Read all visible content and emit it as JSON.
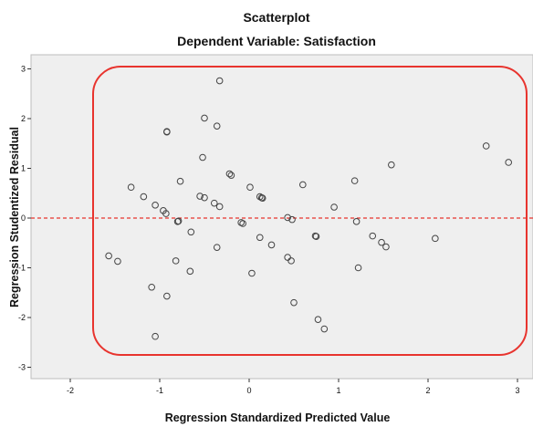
{
  "chart_data": {
    "type": "scatter",
    "title": "Scatterplot",
    "subtitle": "Dependent Variable: Satisfaction",
    "xlabel": "Regression Standardized Predicted Value",
    "ylabel": "Regression Studentized Residual",
    "xlim": [
      -2.5,
      3.05
    ],
    "ylim": [
      -3.25,
      3.3
    ],
    "xticks": [
      -2,
      -1,
      0,
      1,
      2,
      3
    ],
    "yticks": [
      -3,
      -2,
      -1,
      0,
      1,
      2,
      3
    ],
    "reference_line": {
      "y": 0,
      "style": "dashed",
      "color": "#e8342e"
    },
    "grid": false,
    "legend": "none",
    "colors": {
      "plot_background": "#efefef",
      "point_stroke": "#444444",
      "annotation": "#e8342e"
    },
    "points": [
      {
        "x": -0.33,
        "y": 2.76
      },
      {
        "x": -0.5,
        "y": 2.01
      },
      {
        "x": -0.36,
        "y": 1.85
      },
      {
        "x": -0.92,
        "y": 1.73
      },
      {
        "x": -0.92,
        "y": 1.74
      },
      {
        "x": -0.52,
        "y": 1.22
      },
      {
        "x": -0.22,
        "y": 0.89
      },
      {
        "x": -0.2,
        "y": 0.86
      },
      {
        "x": -0.77,
        "y": 0.74
      },
      {
        "x": -1.32,
        "y": 0.62
      },
      {
        "x": -0.55,
        "y": 0.44
      },
      {
        "x": -0.5,
        "y": 0.41
      },
      {
        "x": -0.39,
        "y": 0.3
      },
      {
        "x": -0.33,
        "y": 0.23
      },
      {
        "x": -1.18,
        "y": 0.43
      },
      {
        "x": -1.05,
        "y": 0.26
      },
      {
        "x": -0.96,
        "y": 0.15
      },
      {
        "x": -0.93,
        "y": 0.09
      },
      {
        "x": -0.79,
        "y": -0.06
      },
      {
        "x": -0.8,
        "y": -0.07
      },
      {
        "x": -0.65,
        "y": -0.28
      },
      {
        "x": -0.09,
        "y": -0.09
      },
      {
        "x": -0.07,
        "y": -0.11
      },
      {
        "x": -0.36,
        "y": -0.59
      },
      {
        "x": -0.82,
        "y": -0.86
      },
      {
        "x": -0.66,
        "y": -1.07
      },
      {
        "x": -1.57,
        "y": -0.76
      },
      {
        "x": -1.47,
        "y": -0.87
      },
      {
        "x": -1.09,
        "y": -1.39
      },
      {
        "x": -0.92,
        "y": -1.57
      },
      {
        "x": -1.05,
        "y": -2.38
      },
      {
        "x": 0.01,
        "y": 0.62
      },
      {
        "x": 0.12,
        "y": 0.43
      },
      {
        "x": 0.14,
        "y": 0.41
      },
      {
        "x": 0.15,
        "y": 0.4
      },
      {
        "x": 0.12,
        "y": -0.39
      },
      {
        "x": 0.25,
        "y": -0.54
      },
      {
        "x": 0.03,
        "y": -1.11
      },
      {
        "x": 0.43,
        "y": 0.01
      },
      {
        "x": 0.48,
        "y": -0.03
      },
      {
        "x": 0.43,
        "y": -0.79
      },
      {
        "x": 0.47,
        "y": -0.86
      },
      {
        "x": 0.5,
        "y": -1.7
      },
      {
        "x": 0.6,
        "y": 0.67
      },
      {
        "x": 0.74,
        "y": -0.36
      },
      {
        "x": 0.75,
        "y": -0.37
      },
      {
        "x": 0.77,
        "y": -2.04
      },
      {
        "x": 0.84,
        "y": -2.23
      },
      {
        "x": 0.95,
        "y": 0.22
      },
      {
        "x": 1.18,
        "y": 0.75
      },
      {
        "x": 1.2,
        "y": -0.07
      },
      {
        "x": 1.22,
        "y": -1.0
      },
      {
        "x": 1.38,
        "y": -0.36
      },
      {
        "x": 1.48,
        "y": -0.49
      },
      {
        "x": 1.53,
        "y": -0.58
      },
      {
        "x": 1.59,
        "y": 1.07
      },
      {
        "x": 2.08,
        "y": -0.41
      },
      {
        "x": 2.65,
        "y": 1.45
      },
      {
        "x": 2.9,
        "y": 1.12
      }
    ]
  }
}
